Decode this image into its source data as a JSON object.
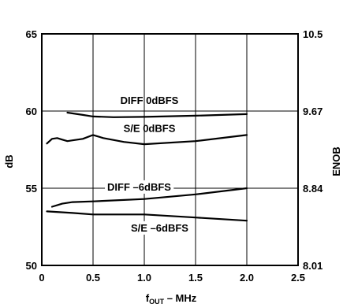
{
  "chart_data": {
    "type": "line",
    "xlabel_main": "f",
    "xlabel_sub": "OUT",
    "xlabel_unit": " – MHz",
    "ylabel": "dB",
    "y2label": "ENOB",
    "xlim": [
      0,
      2.5
    ],
    "ylim": [
      50,
      65
    ],
    "grid": true,
    "x_ticks": [
      "0",
      "0.5",
      "1.0",
      "1.5",
      "2.0",
      "2.5"
    ],
    "y_ticks": [
      "50",
      "55",
      "60",
      "65"
    ],
    "y2_ticks": [
      "8.01",
      "8.84",
      "9.67",
      "10.5"
    ],
    "series": [
      {
        "name": "DIFF 0dBFS",
        "x": [
          0.25,
          0.4,
          0.5,
          0.7,
          1.0,
          1.5,
          2.0
        ],
        "y": [
          59.9,
          59.75,
          59.65,
          59.6,
          59.62,
          59.7,
          59.8
        ]
      },
      {
        "name": "S/E 0dBFS",
        "x": [
          0.05,
          0.1,
          0.15,
          0.2,
          0.25,
          0.3,
          0.4,
          0.5,
          0.6,
          0.8,
          1.0,
          1.5,
          2.0
        ],
        "y": [
          57.9,
          58.2,
          58.25,
          58.15,
          58.05,
          58.1,
          58.2,
          58.45,
          58.25,
          58.0,
          57.85,
          58.05,
          58.45
        ]
      },
      {
        "name": "DIFF –6dBFS",
        "x": [
          0.1,
          0.2,
          0.3,
          0.5,
          1.0,
          1.5,
          2.0
        ],
        "y": [
          53.8,
          54.0,
          54.1,
          54.15,
          54.3,
          54.6,
          55.0
        ]
      },
      {
        "name": "S/E –6dBFS",
        "x": [
          0.05,
          0.3,
          0.5,
          1.0,
          1.5,
          2.0
        ],
        "y": [
          53.5,
          53.4,
          53.3,
          53.3,
          53.1,
          52.9
        ]
      }
    ]
  }
}
